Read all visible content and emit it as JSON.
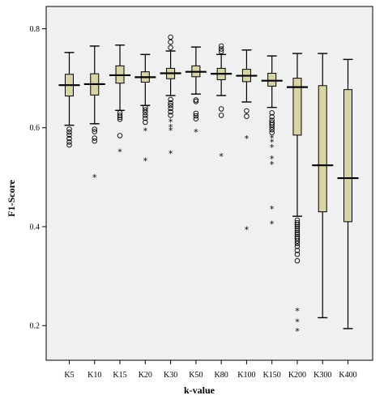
{
  "chart_data": {
    "type": "boxplot",
    "xlabel": "k-value",
    "ylabel": "F1-Score",
    "ylim": [
      0.13,
      0.845
    ],
    "yticks": [
      "0.2",
      "0.4",
      "0.6",
      "0.8"
    ],
    "grid": false,
    "colors": {
      "box_fill": "#d8d4a6",
      "plot_background": "#f0f0f0",
      "stroke": "#000000"
    },
    "categories": [
      "K5",
      "K10",
      "K15",
      "K20",
      "K30",
      "K50",
      "K80",
      "K100",
      "K150",
      "K200",
      "K300",
      "K400"
    ],
    "boxes": [
      {
        "category": "K5",
        "whisker_low": 0.605,
        "q1": 0.664,
        "median": 0.686,
        "q3": 0.708,
        "whisker_high": 0.752,
        "outliers": [
          0.597,
          0.591,
          0.585,
          0.578,
          0.571,
          0.565
        ],
        "extremes": []
      },
      {
        "category": "K10",
        "whisker_low": 0.608,
        "q1": 0.666,
        "median": 0.688,
        "q3": 0.709,
        "whisker_high": 0.765,
        "outliers": [
          0.597,
          0.592,
          0.579,
          0.573
        ],
        "extremes": [
          0.5
        ]
      },
      {
        "category": "K15",
        "whisker_low": 0.635,
        "q1": 0.69,
        "median": 0.706,
        "q3": 0.725,
        "whisker_high": 0.767,
        "outliers": [
          0.63,
          0.625,
          0.621,
          0.617,
          0.584
        ],
        "extremes": [
          0.551
        ]
      },
      {
        "category": "K20",
        "whisker_low": 0.645,
        "q1": 0.692,
        "median": 0.702,
        "q3": 0.713,
        "whisker_high": 0.748,
        "outliers": [
          0.641,
          0.636,
          0.631,
          0.625,
          0.619,
          0.611
        ],
        "extremes": [
          0.594,
          0.533
        ]
      },
      {
        "category": "K30",
        "whisker_low": 0.665,
        "q1": 0.699,
        "median": 0.71,
        "q3": 0.72,
        "whisker_high": 0.755,
        "outliers": [
          0.783,
          0.773,
          0.762,
          0.657,
          0.65,
          0.645,
          0.639,
          0.632,
          0.625
        ],
        "extremes": [
          0.612,
          0.601,
          0.595,
          0.548
        ]
      },
      {
        "category": "K50",
        "whisker_low": 0.668,
        "q1": 0.703,
        "median": 0.713,
        "q3": 0.725,
        "whisker_high": 0.763,
        "outliers": [
          0.656,
          0.653,
          0.629,
          0.624,
          0.618
        ],
        "extremes": [
          0.591
        ]
      },
      {
        "category": "K80",
        "whisker_low": 0.665,
        "q1": 0.697,
        "median": 0.709,
        "q3": 0.72,
        "whisker_high": 0.748,
        "outliers": [
          0.765,
          0.759,
          0.754,
          0.638,
          0.625
        ],
        "extremes": [
          0.542
        ]
      },
      {
        "category": "K100",
        "whisker_low": 0.652,
        "q1": 0.693,
        "median": 0.705,
        "q3": 0.718,
        "whisker_high": 0.757,
        "outliers": [
          0.634,
          0.623
        ],
        "extremes": [
          0.578,
          0.394
        ]
      },
      {
        "category": "K150",
        "whisker_low": 0.641,
        "q1": 0.684,
        "median": 0.695,
        "q3": 0.71,
        "whisker_high": 0.745,
        "outliers": [
          0.63,
          0.622,
          0.615,
          0.61,
          0.606,
          0.601,
          0.596,
          0.59
        ],
        "extremes": [
          0.579,
          0.571,
          0.56,
          0.537,
          0.526,
          0.436,
          0.406
        ]
      },
      {
        "category": "K200",
        "whisker_low": 0.421,
        "q1": 0.585,
        "median": 0.682,
        "q3": 0.7,
        "whisker_high": 0.75,
        "outliers": [
          0.413,
          0.408,
          0.404,
          0.4,
          0.396,
          0.392,
          0.388,
          0.384,
          0.38,
          0.376,
          0.371,
          0.366,
          0.36,
          0.352,
          0.344,
          0.331
        ],
        "extremes": [
          0.23,
          0.208,
          0.189
        ]
      },
      {
        "category": "K300",
        "whisker_low": 0.216,
        "q1": 0.43,
        "median": 0.524,
        "q3": 0.685,
        "whisker_high": 0.75,
        "outliers": [],
        "extremes": []
      },
      {
        "category": "K400",
        "whisker_low": 0.194,
        "q1": 0.41,
        "median": 0.498,
        "q3": 0.677,
        "whisker_high": 0.738,
        "outliers": [],
        "extremes": []
      }
    ]
  }
}
